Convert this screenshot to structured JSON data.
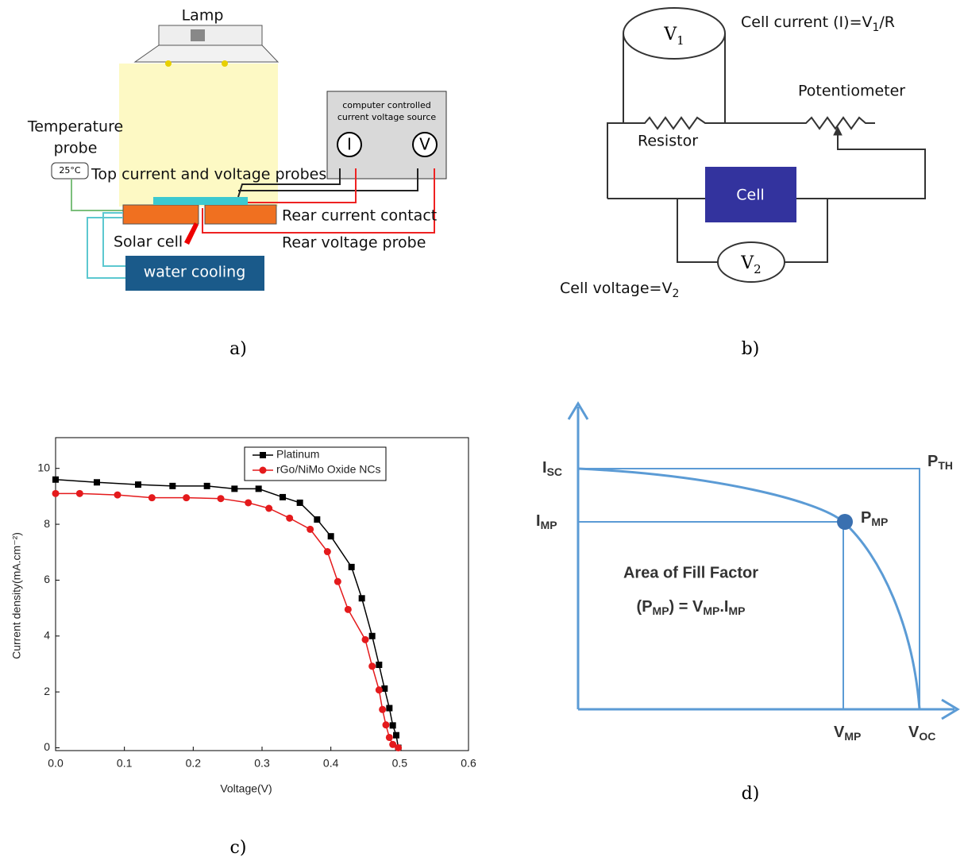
{
  "panel_a": {
    "label": "a)",
    "lamp": "Lamp",
    "temperature_probe": [
      "Temperature",
      "probe"
    ],
    "temp_readout": "25°C",
    "source_box": [
      "computer controlled",
      "current voltage source"
    ],
    "meter_i": "I",
    "meter_v": "V",
    "top_probes": "Top current and voltage probes",
    "rear_contact": "Rear current contact",
    "solar_cell": "Solar cell",
    "rear_voltage_probe": "Rear voltage probe",
    "water_cooling": "water cooling"
  },
  "panel_b": {
    "label": "b)",
    "v1": {
      "main": "V",
      "sub": "1"
    },
    "cell_current": [
      "Cell current (I)=V",
      "1",
      "/R"
    ],
    "potentiometer": "Potentiometer",
    "resistor": "Resistor",
    "cell": "Cell",
    "v2": {
      "main": "V",
      "sub": "2"
    },
    "cell_voltage": [
      "Cell voltage=V",
      "2"
    ]
  },
  "chart_data": {
    "type": "line",
    "panel_label": "c)",
    "x_label": "Voltage(V)",
    "y_label": "Current density(mA.cm⁻²)",
    "xlim": [
      0,
      0.6
    ],
    "ylim": [
      -0.1,
      11.1
    ],
    "xticks": [
      {
        "value": 0,
        "label": "0.0"
      },
      0.1,
      0.2,
      0.3,
      0.4,
      0.5,
      0.6
    ],
    "yticks": [
      0,
      2,
      4,
      6,
      8,
      10
    ],
    "legend": "upper right",
    "series": [
      {
        "name": "Platinum",
        "color": "#000000",
        "marker": "square",
        "x": [
          0,
          0.06,
          0.12,
          0.17,
          0.22,
          0.26,
          0.295,
          0.33,
          0.355,
          0.38,
          0.4,
          0.43,
          0.445,
          0.46,
          0.47,
          0.478,
          0.485,
          0.49,
          0.495,
          0.498
        ],
        "values": [
          9.6,
          9.5,
          9.42,
          9.37,
          9.37,
          9.27,
          9.27,
          8.97,
          8.77,
          8.17,
          7.57,
          6.47,
          5.35,
          4.0,
          2.97,
          2.12,
          1.42,
          0.8,
          0.45,
          0.0
        ]
      },
      {
        "name": "rGo/NiMo Oxide NCs",
        "color": "#e41a1c",
        "marker": "circle",
        "x": [
          0,
          0.035,
          0.09,
          0.14,
          0.19,
          0.24,
          0.28,
          0.31,
          0.34,
          0.37,
          0.395,
          0.41,
          0.425,
          0.45,
          0.46,
          0.47,
          0.475,
          0.48,
          0.485,
          0.49,
          0.498
        ],
        "values": [
          9.1,
          9.1,
          9.05,
          8.95,
          8.95,
          8.92,
          8.77,
          8.57,
          8.22,
          7.82,
          7.02,
          5.95,
          4.95,
          3.87,
          2.92,
          2.07,
          1.37,
          0.82,
          0.37,
          0.12,
          0.0
        ]
      }
    ]
  },
  "panel_d": {
    "label": "d)",
    "isc": {
      "main": "I",
      "sub": "SC"
    },
    "imp": {
      "main": "I",
      "sub": "MP"
    },
    "pth": {
      "main": "P",
      "sub": "TH"
    },
    "pmp": {
      "main": "P",
      "sub": "MP"
    },
    "vmp": {
      "main": "V",
      "sub": "MP"
    },
    "voc": {
      "main": "V",
      "sub": "OC"
    },
    "area_title": "Area of Fill Factor",
    "formula": [
      "(P",
      "MP",
      ") = V",
      "MP",
      ".I",
      "MP"
    ]
  }
}
